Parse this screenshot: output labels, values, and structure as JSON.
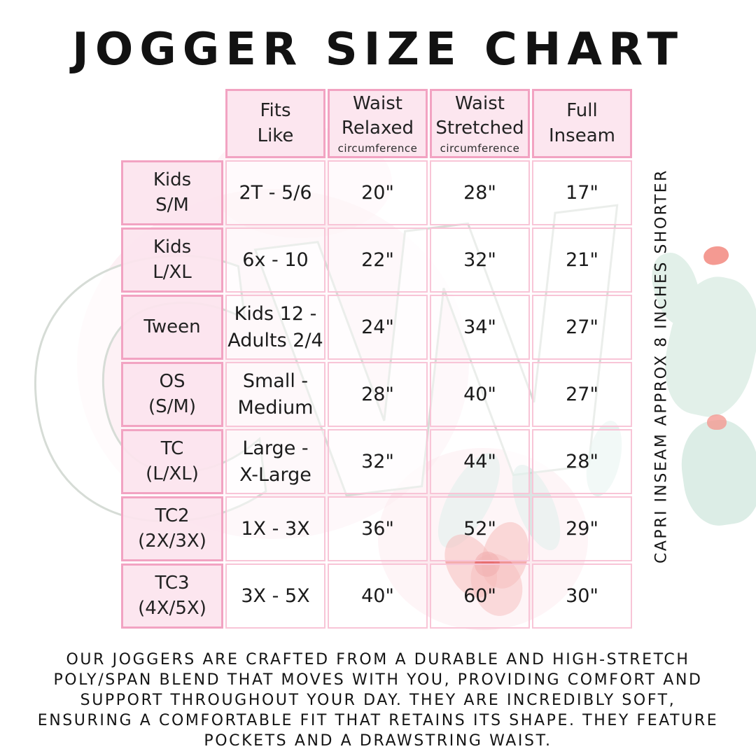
{
  "title": "JOGGER SIZE CHART",
  "watermark": "CW",
  "side_note": "CAPRI INSEAM APPROX 8 INCHES SHORTER",
  "chart_data": {
    "type": "table",
    "title": "JOGGER SIZE CHART",
    "columns": [
      {
        "title": "Fits\nLike",
        "sub": ""
      },
      {
        "title": "Waist\nRelaxed",
        "sub": "circumference"
      },
      {
        "title": "Waist\nStretched",
        "sub": "circumference"
      },
      {
        "title": "Full\nInseam",
        "sub": ""
      }
    ],
    "rows": [
      {
        "label": "Kids\nS/M",
        "cells": [
          "2T - 5/6",
          "20\"",
          "28\"",
          "17\""
        ]
      },
      {
        "label": "Kids\nL/XL",
        "cells": [
          "6x - 10",
          "22\"",
          "32\"",
          "21\""
        ]
      },
      {
        "label": "Tween",
        "cells": [
          "Kids 12 -\nAdults 2/4",
          "24\"",
          "34\"",
          "27\""
        ]
      },
      {
        "label": "OS\n(S/M)",
        "cells": [
          "Small -\nMedium",
          "28\"",
          "40\"",
          "27\""
        ]
      },
      {
        "label": "TC\n(L/XL)",
        "cells": [
          "Large -\nX-Large",
          "32\"",
          "44\"",
          "28\""
        ]
      },
      {
        "label": "TC2\n(2X/3X)",
        "cells": [
          "1X - 3X",
          "36\"",
          "52\"",
          "29\""
        ]
      },
      {
        "label": "TC3\n(4X/5X)",
        "cells": [
          "3X - 5X",
          "40\"",
          "60\"",
          "30\""
        ]
      }
    ]
  },
  "footer": {
    "lines": [
      "OUR JOGGERS ARE CRAFTED FROM A DURABLE AND HIGH-STRETCH",
      "POLY/SPAN BLEND THAT MOVES WITH YOU, PROVIDING COMFORT AND",
      "SUPPORT THROUGHOUT YOUR DAY. THEY ARE INCREDIBLY SOFT,",
      "ENSURING A COMFORTABLE FIT THAT RETAINS ITS SHAPE. THEY FEATURE",
      "POCKETS AND A DRAWSTRING WAIST."
    ]
  },
  "colors": {
    "border_strong": "#f2a3c2",
    "border_light": "#f8c5d7",
    "cell_fill_pink": "#fce4ee",
    "text": "#1b1b1b",
    "cactus_green": "#e2f0e9",
    "flower_red": "#ec7b79"
  }
}
